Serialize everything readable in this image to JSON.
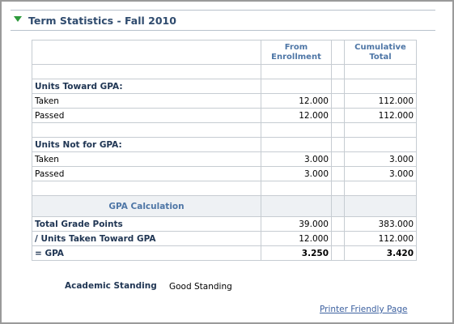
{
  "section": {
    "title": "Term Statistics - Fall 2010"
  },
  "table": {
    "col_from": "From Enrollment",
    "col_cumulative": "Cumulative Total",
    "units_gpa_heading": "Units Toward GPA:",
    "units_gpa": [
      {
        "label": "Taken",
        "from": "12.000",
        "cumulative": "112.000"
      },
      {
        "label": "Passed",
        "from": "12.000",
        "cumulative": "112.000"
      }
    ],
    "units_not_gpa_heading": "Units Not for GPA:",
    "units_not_gpa": [
      {
        "label": "Taken",
        "from": "3.000",
        "cumulative": "3.000"
      },
      {
        "label": "Passed",
        "from": "3.000",
        "cumulative": "3.000"
      }
    ],
    "gpa_calc_heading": "GPA Calculation",
    "gpa_rows": [
      {
        "label": "Total Grade Points",
        "from": "39.000",
        "cumulative": "383.000"
      },
      {
        "label": "/  Units Taken Toward GPA",
        "from": "12.000",
        "cumulative": "112.000"
      },
      {
        "label": "= GPA",
        "from": "3.250",
        "cumulative": "3.420"
      }
    ]
  },
  "standing": {
    "label": "Academic Standing",
    "value": "Good Standing"
  },
  "links": {
    "printer_friendly": "Printer Friendly Page"
  },
  "icons": {
    "collapse": "collapse-triangle-icon"
  },
  "colors": {
    "title": "#2f4b6e",
    "header_text": "#4e76a6",
    "triangle": "#2e9a3c",
    "link": "#3d61a0"
  }
}
